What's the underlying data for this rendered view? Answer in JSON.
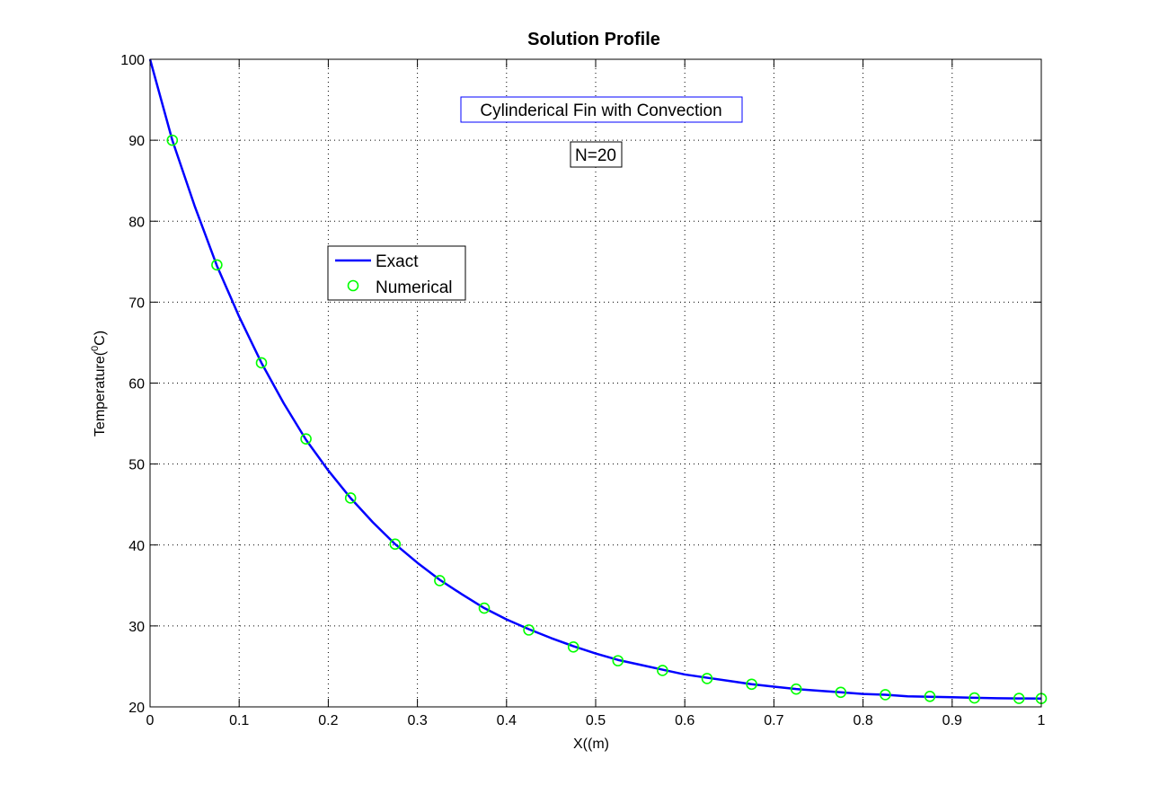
{
  "chart_data": {
    "type": "line",
    "title": "Solution Profile",
    "xlabel": "X((m)",
    "ylabel_prefix": "Temperature(",
    "ylabel_sup": "0",
    "ylabel_suffix": "C)",
    "xlim": [
      0,
      1
    ],
    "ylim": [
      20,
      100
    ],
    "xticks": [
      0,
      0.1,
      0.2,
      0.3,
      0.4,
      0.5,
      0.6,
      0.7,
      0.8,
      0.9,
      1
    ],
    "xtick_labels": [
      "0",
      "0.1",
      "0.2",
      "0.3",
      "0.4",
      "0.5",
      "0.6",
      "0.7",
      "0.8",
      "0.9",
      "1"
    ],
    "yticks": [
      20,
      30,
      40,
      50,
      60,
      70,
      80,
      90,
      100
    ],
    "ytick_labels": [
      "20",
      "30",
      "40",
      "50",
      "60",
      "70",
      "80",
      "90",
      "100"
    ],
    "grid": true,
    "legend_position": "upper-left-center",
    "annotations": [
      {
        "text": "Cylinderical Fin with Convection",
        "border_color": "#0000ff"
      },
      {
        "text": "N=20",
        "border_color": "#000000"
      }
    ],
    "series": [
      {
        "name": "Exact",
        "style": "line",
        "color": "#0000ff",
        "x": [
          0,
          0.025,
          0.05,
          0.075,
          0.1,
          0.125,
          0.15,
          0.175,
          0.2,
          0.225,
          0.25,
          0.275,
          0.3,
          0.325,
          0.35,
          0.375,
          0.4,
          0.425,
          0.45,
          0.475,
          0.5,
          0.525,
          0.55,
          0.575,
          0.6,
          0.625,
          0.65,
          0.675,
          0.7,
          0.725,
          0.75,
          0.775,
          0.8,
          0.825,
          0.85,
          0.875,
          0.9,
          0.925,
          0.95,
          0.975,
          1.0
        ],
        "y": [
          100,
          90.0,
          81.9,
          74.5,
          68.2,
          62.5,
          57.5,
          53.0,
          49.2,
          45.8,
          42.8,
          40.1,
          37.8,
          35.7,
          33.9,
          32.2,
          30.8,
          29.6,
          28.5,
          27.5,
          26.6,
          25.8,
          25.2,
          24.6,
          24.0,
          23.6,
          23.2,
          22.8,
          22.5,
          22.2,
          22.0,
          21.8,
          21.6,
          21.5,
          21.3,
          21.25,
          21.2,
          21.12,
          21.07,
          21.04,
          21.03
        ]
      },
      {
        "name": "Numerical",
        "style": "marker",
        "color": "#00ff00",
        "x": [
          0.025,
          0.075,
          0.125,
          0.175,
          0.225,
          0.275,
          0.325,
          0.375,
          0.425,
          0.475,
          0.525,
          0.575,
          0.625,
          0.675,
          0.725,
          0.775,
          0.825,
          0.875,
          0.925,
          0.975,
          1.0
        ],
        "y": [
          90.0,
          74.6,
          62.5,
          53.1,
          45.8,
          40.1,
          35.6,
          32.2,
          29.5,
          27.4,
          25.7,
          24.5,
          23.5,
          22.8,
          22.2,
          21.8,
          21.5,
          21.3,
          21.1,
          21.05,
          21.03
        ]
      }
    ]
  }
}
